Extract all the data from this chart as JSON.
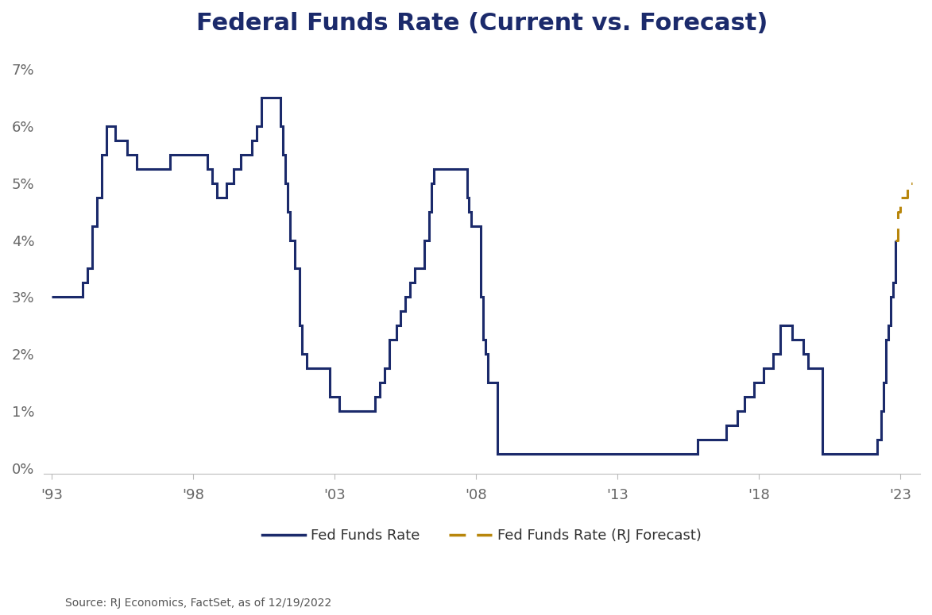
{
  "title": "Federal Funds Rate (Current vs. Forecast)",
  "source_text": "Source: RJ Economics, FactSet, as of 12/19/2022",
  "line_color": "#1B2A6B",
  "forecast_color": "#B8860B",
  "background_color": "#ffffff",
  "ytick_labels": [
    "0%",
    "1%",
    "2%",
    "3%",
    "4%",
    "5%",
    "6%",
    "7%"
  ],
  "ytick_values": [
    0,
    1,
    2,
    3,
    4,
    5,
    6,
    7
  ],
  "ylim": [
    -0.1,
    7.3
  ],
  "xtick_labels": [
    "'93",
    "'98",
    "'03",
    "'08",
    "'13",
    "'18",
    "'23"
  ],
  "xtick_values": [
    1993,
    1998,
    2003,
    2008,
    2013,
    2018,
    2023
  ],
  "xlim": [
    1992.7,
    2023.7
  ],
  "legend_label_actual": "Fed Funds Rate",
  "legend_label_forecast": "Fed Funds Rate (RJ Forecast)",
  "fed_funds_rate_dates": [
    1993.0,
    1993.08,
    1994.0,
    1994.08,
    1994.25,
    1994.42,
    1994.58,
    1994.75,
    1994.92,
    1995.0,
    1995.25,
    1995.5,
    1995.67,
    1996.0,
    1996.5,
    1997.0,
    1997.17,
    1997.5,
    1997.75,
    1998.0,
    1998.17,
    1998.5,
    1998.67,
    1998.83,
    1999.0,
    1999.17,
    1999.42,
    1999.67,
    1999.83,
    2000.0,
    2000.08,
    2000.25,
    2000.42,
    2000.58,
    2000.67,
    2001.0,
    2001.08,
    2001.17,
    2001.25,
    2001.33,
    2001.42,
    2001.58,
    2001.75,
    2001.83,
    2002.0,
    2002.5,
    2002.83,
    2003.0,
    2003.17,
    2003.5,
    2004.0,
    2004.42,
    2004.58,
    2004.75,
    2004.92,
    2005.0,
    2005.17,
    2005.33,
    2005.5,
    2005.67,
    2005.83,
    2006.0,
    2006.17,
    2006.33,
    2006.42,
    2006.5,
    2007.0,
    2007.67,
    2007.75,
    2007.83,
    2008.0,
    2008.17,
    2008.25,
    2008.33,
    2008.42,
    2008.75,
    2008.83,
    2009.0,
    2010.0,
    2011.0,
    2012.0,
    2013.0,
    2014.0,
    2014.5,
    2015.0,
    2015.83,
    2016.0,
    2016.83,
    2017.0,
    2017.25,
    2017.5,
    2017.83,
    2018.0,
    2018.17,
    2018.5,
    2018.75,
    2019.0,
    2019.17,
    2019.58,
    2019.75,
    2020.0,
    2020.25,
    2020.33,
    2021.0,
    2021.5,
    2022.0,
    2022.17,
    2022.33,
    2022.42,
    2022.5,
    2022.58,
    2022.67,
    2022.75,
    2022.83
  ],
  "fed_funds_rate_values": [
    3.0,
    3.0,
    3.0,
    3.25,
    3.5,
    4.25,
    4.75,
    5.5,
    6.0,
    6.0,
    5.75,
    5.75,
    5.5,
    5.25,
    5.25,
    5.25,
    5.5,
    5.5,
    5.5,
    5.5,
    5.5,
    5.25,
    5.0,
    4.75,
    4.75,
    5.0,
    5.25,
    5.5,
    5.5,
    5.5,
    5.75,
    6.0,
    6.5,
    6.5,
    6.5,
    6.5,
    6.0,
    5.5,
    5.0,
    4.5,
    4.0,
    3.5,
    2.5,
    2.0,
    1.75,
    1.75,
    1.25,
    1.25,
    1.0,
    1.0,
    1.0,
    1.25,
    1.5,
    1.75,
    2.25,
    2.25,
    2.5,
    2.75,
    3.0,
    3.25,
    3.5,
    3.5,
    4.0,
    4.5,
    5.0,
    5.25,
    5.25,
    4.75,
    4.5,
    4.25,
    4.25,
    3.0,
    2.25,
    2.0,
    1.5,
    0.25,
    0.25,
    0.25,
    0.25,
    0.25,
    0.25,
    0.25,
    0.25,
    0.25,
    0.25,
    0.5,
    0.5,
    0.75,
    0.75,
    1.0,
    1.25,
    1.5,
    1.5,
    1.75,
    2.0,
    2.5,
    2.5,
    2.25,
    2.0,
    1.75,
    1.75,
    0.25,
    0.25,
    0.25,
    0.25,
    0.25,
    0.5,
    1.0,
    1.5,
    2.25,
    2.5,
    3.0,
    3.25,
    4.0
  ],
  "forecast_dates": [
    2022.83,
    2022.92,
    2023.0,
    2023.25,
    2023.42
  ],
  "forecast_values": [
    4.0,
    4.5,
    4.75,
    5.0,
    5.0
  ]
}
